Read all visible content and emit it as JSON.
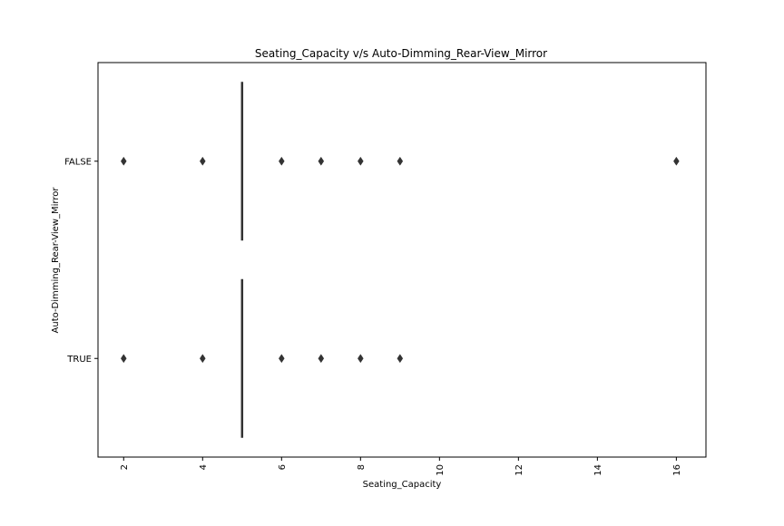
{
  "chart_data": {
    "type": "boxplot",
    "orientation": "horizontal",
    "title": "Seating_Capacity v/s Auto-Dimming_Rear-View_Mirror",
    "xlabel": "Seating_Capacity",
    "ylabel": "Auto-Dimming_Rear-View_Mirror",
    "xlim": [
      1.35,
      16.75
    ],
    "xticks": [
      2,
      4,
      6,
      8,
      10,
      12,
      14,
      16
    ],
    "xtick_labels": [
      "2",
      "4",
      "6",
      "8",
      "10",
      "12",
      "14",
      "16"
    ],
    "categories": [
      "FALSE",
      "TRUE"
    ],
    "grid": false,
    "box_color": "#333333",
    "series": [
      {
        "category": "FALSE",
        "box": {
          "q1": 5,
          "median": 5,
          "q3": 5,
          "whisker_low": 5,
          "whisker_high": 5
        },
        "outliers": [
          2,
          4,
          6,
          7,
          8,
          9,
          16
        ]
      },
      {
        "category": "TRUE",
        "box": {
          "q1": 5,
          "median": 5,
          "q3": 5,
          "whisker_low": 5,
          "whisker_high": 5
        },
        "outliers": [
          2,
          4,
          6,
          7,
          8,
          9
        ]
      }
    ]
  }
}
